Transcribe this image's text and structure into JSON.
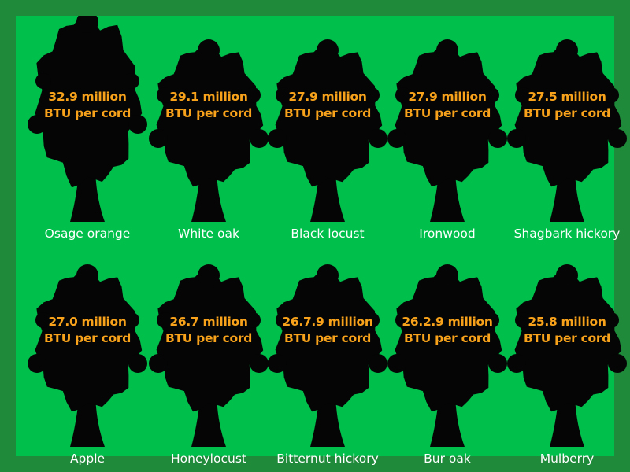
{
  "chart_data": {
    "type": "pictograph",
    "unit_line": "BTU per cord",
    "colors": {
      "frame": "#1e8a3a",
      "panel": "#00bf4b",
      "tree": "#050505",
      "value_text": "#f7a21a",
      "name_text": "#ffffff"
    },
    "items": [
      {
        "name": "Osage orange",
        "value_label": "32.9 million",
        "value": 32.9
      },
      {
        "name": "White oak",
        "value_label": "29.1 million",
        "value": 29.1
      },
      {
        "name": "Black locust",
        "value_label": "27.9 million",
        "value": 27.9
      },
      {
        "name": "Ironwood",
        "value_label": "27.9 million",
        "value": 27.9
      },
      {
        "name": "Shagbark hickory",
        "value_label": "27.5 million",
        "value": 27.5
      },
      {
        "name": "Apple",
        "value_label": "27.0 million",
        "value": 27.0
      },
      {
        "name": "Honeylocust",
        "value_label": "26.7 million",
        "value": 26.7
      },
      {
        "name": "Bitternut hickory",
        "value_label": "26.7.9 million",
        "value": 26.7
      },
      {
        "name": "Bur oak",
        "value_label": "26.2.9 million",
        "value": 26.2
      },
      {
        "name": "Mulberry",
        "value_label": "25.8 million",
        "value": 25.8
      }
    ]
  }
}
